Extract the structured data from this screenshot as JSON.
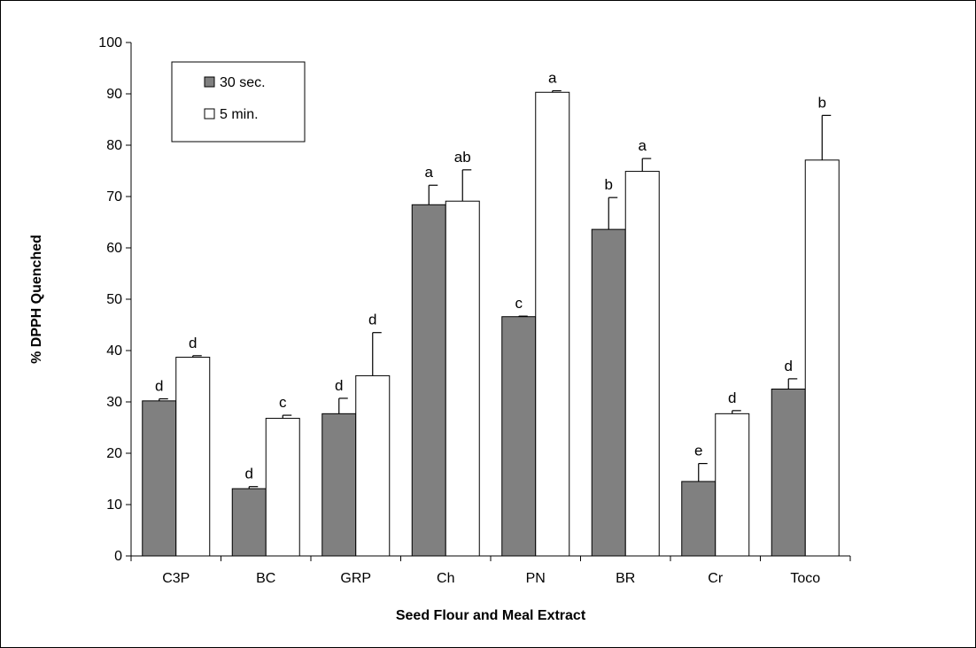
{
  "chart_data": {
    "type": "bar",
    "xlabel": "Seed Flour and Meal Extract",
    "ylabel": "% DPPH Quenched",
    "ylim": [
      0,
      100
    ],
    "yticks": [
      0,
      10,
      20,
      30,
      40,
      50,
      60,
      70,
      80,
      90,
      100
    ],
    "categories": [
      "C3P",
      "BC",
      "GRP",
      "Ch",
      "PN",
      "BR",
      "Cr",
      "Toco"
    ],
    "legend_position": "top-left",
    "series": [
      {
        "name": "30 sec.",
        "color": "#808080",
        "values": [
          30.2,
          13.1,
          27.7,
          68.4,
          46.6,
          63.6,
          14.5,
          32.5
        ],
        "errors": [
          0.4,
          0.4,
          3.0,
          3.8,
          0.1,
          6.2,
          3.5,
          2.0
        ],
        "labels": [
          "d",
          "d",
          "d",
          "a",
          "c",
          "b",
          "e",
          "d"
        ]
      },
      {
        "name": "5 min.",
        "color": "#ffffff",
        "values": [
          38.7,
          26.8,
          35.1,
          69.1,
          90.3,
          74.9,
          27.7,
          77.1
        ],
        "errors": [
          0.3,
          0.6,
          8.4,
          6.1,
          0.3,
          2.5,
          0.6,
          8.7
        ],
        "labels": [
          "d",
          "c",
          "d",
          "ab",
          "a",
          "a",
          "d",
          "b"
        ]
      }
    ]
  }
}
